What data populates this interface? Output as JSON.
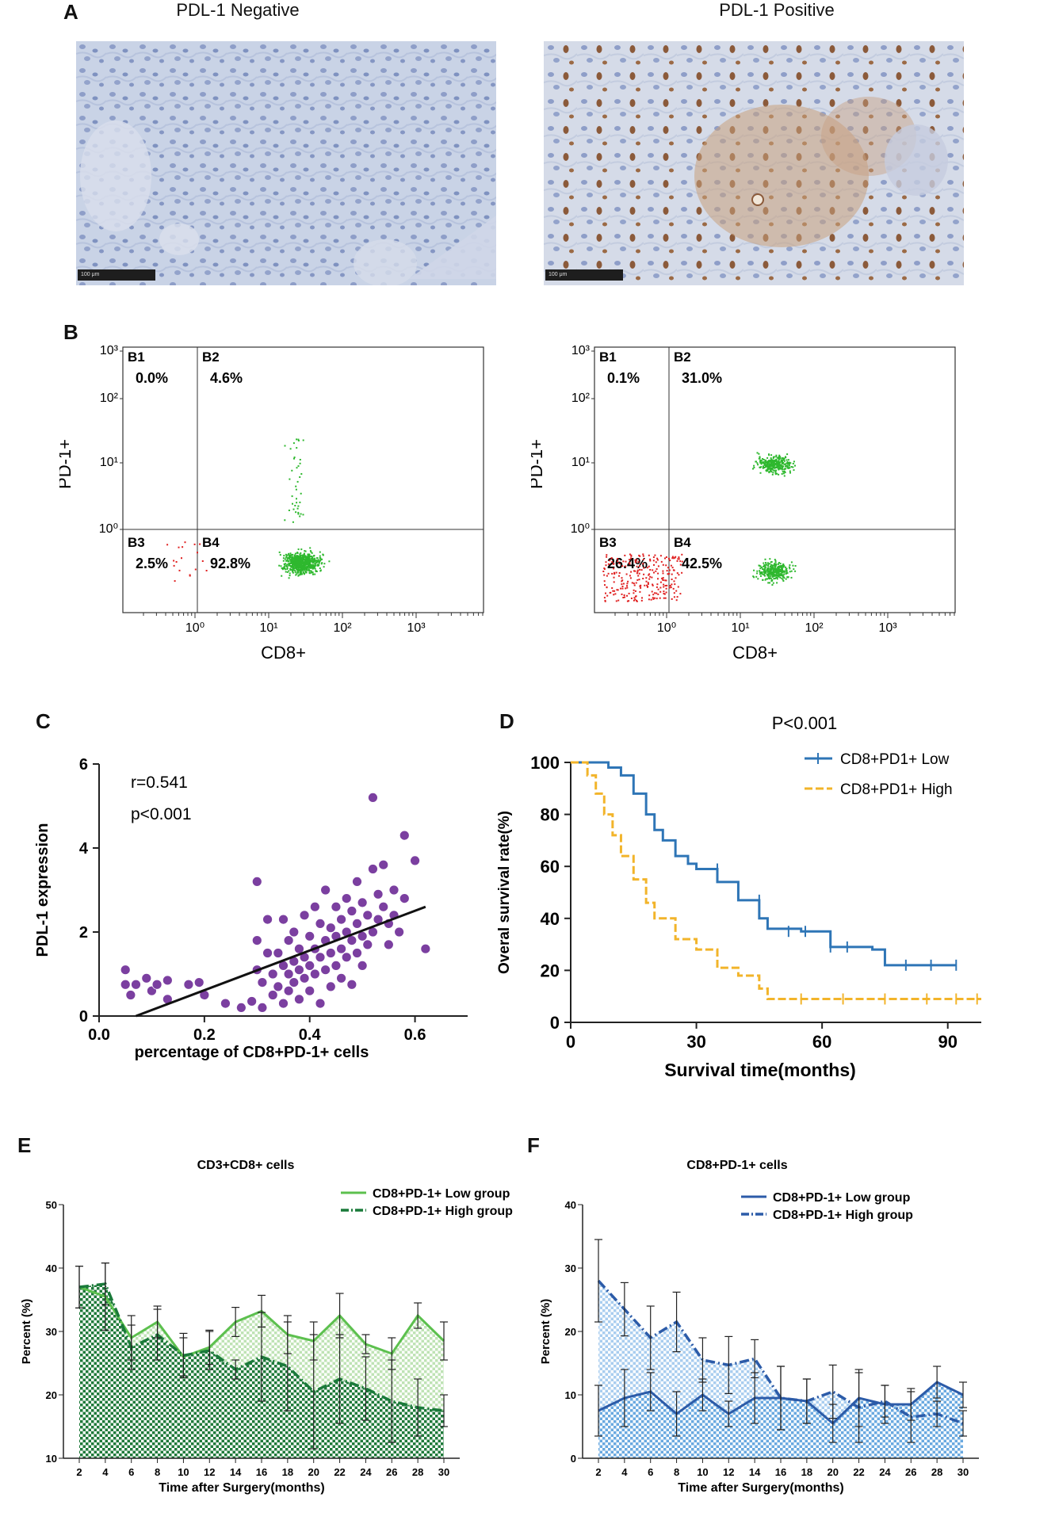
{
  "panel_a": {
    "label": "A",
    "left_title": "PDL-1 Negative",
    "right_title": "PDL-1 Positive",
    "scale_text": "100 μm"
  },
  "panel_b": {
    "label": "B",
    "ylabel": "PD-1+",
    "xlabel": "CD8+",
    "ticks": [
      "10⁰",
      "10¹",
      "10²",
      "10³"
    ],
    "left": {
      "B1": "0.0%",
      "B2": "4.6%",
      "B3": "2.5%",
      "B4": "92.8%"
    },
    "right": {
      "B1": "0.1%",
      "B2": "31.0%",
      "B3": "26.4%",
      "B4": "42.5%"
    },
    "quadrant_names": [
      "B1",
      "B2",
      "B3",
      "B4"
    ]
  },
  "panel_c": {
    "label": "C",
    "xlabel": "percentage of CD8+PD-1+ cells",
    "ylabel": "PDL-1  expression",
    "r_text": "r=0.541",
    "p_text": "p<0.001",
    "xticks": [
      "0.0",
      "0.2",
      "0.4",
      "0.6"
    ],
    "yticks": [
      "0",
      "2",
      "4",
      "6"
    ]
  },
  "panel_d": {
    "label": "D",
    "p_text": "P<0.001",
    "xlabel": "Survival time(months)",
    "ylabel": "Overal survival rate(%)",
    "legend_low": "CD8+PD1+ Low",
    "legend_high": "CD8+PD1+ High",
    "xticks": [
      "0",
      "30",
      "60",
      "90"
    ],
    "yticks": [
      "0",
      "20",
      "40",
      "60",
      "80",
      "100"
    ]
  },
  "panel_e": {
    "label": "E",
    "title": "CD3+CD8+ cells",
    "xlabel": "Time after Surgery(months)",
    "ylabel": "Percent (%)",
    "legend_low": "CD8+PD-1+ Low group",
    "legend_high": "CD8+PD-1+ High group",
    "yticks": [
      "10",
      "20",
      "30",
      "40",
      "50"
    ]
  },
  "panel_f": {
    "label": "F",
    "title": "CD8+PD-1+ cells",
    "xlabel": "Time after Surgery(months)",
    "ylabel": "Percent (%)",
    "legend_low": "CD8+PD-1+ Low group",
    "legend_high": "CD8+PD-1+ High group",
    "yticks": [
      "0",
      "10",
      "20",
      "30",
      "40"
    ]
  },
  "colors": {
    "green_light": "#5cc04e",
    "green_dark": "#1a7a3a",
    "blue": "#2c5ba8",
    "orange": "#f2b42a",
    "km_blue": "#2e75b6",
    "purple": "#7b3fa0",
    "flow_green": "#2eb82e",
    "flow_red": "#e02020"
  },
  "chart_data": [
    {
      "id": "C",
      "type": "scatter",
      "title": "",
      "xlabel": "percentage of CD8+PD-1+ cells",
      "ylabel": "PDL-1 expression",
      "xlim": [
        0,
        0.7
      ],
      "ylim": [
        0,
        6
      ],
      "annotation": [
        "r=0.541",
        "p<0.001"
      ],
      "fit_line": {
        "x": [
          0.07,
          0.62
        ],
        "y": [
          0,
          2.6
        ]
      },
      "points": [
        [
          0.05,
          1.1
        ],
        [
          0.05,
          0.75
        ],
        [
          0.06,
          0.5
        ],
        [
          0.07,
          0.75
        ],
        [
          0.09,
          0.9
        ],
        [
          0.1,
          0.6
        ],
        [
          0.11,
          0.75
        ],
        [
          0.13,
          0.4
        ],
        [
          0.13,
          0.85
        ],
        [
          0.17,
          0.75
        ],
        [
          0.19,
          0.8
        ],
        [
          0.2,
          0.5
        ],
        [
          0.24,
          0.3
        ],
        [
          0.27,
          0.2
        ],
        [
          0.29,
          0.35
        ],
        [
          0.3,
          3.2
        ],
        [
          0.3,
          1.8
        ],
        [
          0.3,
          1.1
        ],
        [
          0.31,
          0.8
        ],
        [
          0.31,
          0.2
        ],
        [
          0.32,
          2.3
        ],
        [
          0.32,
          1.5
        ],
        [
          0.33,
          1.0
        ],
        [
          0.33,
          0.5
        ],
        [
          0.34,
          1.5
        ],
        [
          0.34,
          0.7
        ],
        [
          0.35,
          2.3
        ],
        [
          0.35,
          1.2
        ],
        [
          0.35,
          0.3
        ],
        [
          0.36,
          1.8
        ],
        [
          0.36,
          1.0
        ],
        [
          0.36,
          0.6
        ],
        [
          0.37,
          2.0
        ],
        [
          0.37,
          1.3
        ],
        [
          0.37,
          0.8
        ],
        [
          0.38,
          1.6
        ],
        [
          0.38,
          1.1
        ],
        [
          0.38,
          0.4
        ],
        [
          0.39,
          2.4
        ],
        [
          0.39,
          1.4
        ],
        [
          0.39,
          0.9
        ],
        [
          0.4,
          1.9
        ],
        [
          0.4,
          1.2
        ],
        [
          0.4,
          0.6
        ],
        [
          0.41,
          2.6
        ],
        [
          0.41,
          1.6
        ],
        [
          0.41,
          1.0
        ],
        [
          0.42,
          2.2
        ],
        [
          0.42,
          1.4
        ],
        [
          0.42,
          0.3
        ],
        [
          0.43,
          3.0
        ],
        [
          0.43,
          1.8
        ],
        [
          0.43,
          1.1
        ],
        [
          0.44,
          2.1
        ],
        [
          0.44,
          1.5
        ],
        [
          0.44,
          0.7
        ],
        [
          0.45,
          2.6
        ],
        [
          0.45,
          1.9
        ],
        [
          0.45,
          1.2
        ],
        [
          0.46,
          2.3
        ],
        [
          0.46,
          1.6
        ],
        [
          0.46,
          0.9
        ],
        [
          0.47,
          2.8
        ],
        [
          0.47,
          2.0
        ],
        [
          0.47,
          1.4
        ],
        [
          0.48,
          2.5
        ],
        [
          0.48,
          1.8
        ],
        [
          0.48,
          0.75
        ],
        [
          0.49,
          3.2
        ],
        [
          0.49,
          2.2
        ],
        [
          0.49,
          1.5
        ],
        [
          0.5,
          2.7
        ],
        [
          0.5,
          1.9
        ],
        [
          0.5,
          1.2
        ],
        [
          0.51,
          2.4
        ],
        [
          0.51,
          1.7
        ],
        [
          0.52,
          3.5
        ],
        [
          0.52,
          2.0
        ],
        [
          0.52,
          5.2
        ],
        [
          0.53,
          2.9
        ],
        [
          0.53,
          2.3
        ],
        [
          0.54,
          3.6
        ],
        [
          0.54,
          2.6
        ],
        [
          0.55,
          2.2
        ],
        [
          0.55,
          1.7
        ],
        [
          0.56,
          3.0
        ],
        [
          0.56,
          2.4
        ],
        [
          0.57,
          2.0
        ],
        [
          0.58,
          4.3
        ],
        [
          0.58,
          2.8
        ],
        [
          0.6,
          3.7
        ],
        [
          0.62,
          1.6
        ]
      ]
    },
    {
      "id": "D",
      "type": "line",
      "title": "P<0.001",
      "xlabel": "Survival time(months)",
      "ylabel": "Overal survival rate(%)",
      "xlim": [
        0,
        98
      ],
      "ylim": [
        0,
        100
      ],
      "series": [
        {
          "name": "CD8+PD1+ Low",
          "x": [
            0,
            5,
            9,
            12,
            15,
            18,
            20,
            22,
            25,
            28,
            30,
            35,
            40,
            45,
            47,
            55,
            62,
            72,
            75,
            80,
            92
          ],
          "y": [
            100,
            100,
            98,
            95,
            88,
            80,
            74,
            70,
            64,
            61,
            59,
            54,
            47,
            40,
            36,
            35,
            29,
            28,
            22,
            22,
            22
          ]
        },
        {
          "name": "CD8+PD1+ High",
          "x": [
            0,
            4,
            6,
            8,
            10,
            12,
            15,
            18,
            20,
            25,
            30,
            35,
            40,
            45,
            47,
            55,
            70,
            98
          ],
          "y": [
            100,
            95,
            88,
            80,
            72,
            64,
            55,
            46,
            40,
            32,
            28,
            21,
            18,
            13,
            9,
            9,
            9,
            9
          ]
        }
      ]
    },
    {
      "id": "E",
      "type": "area",
      "title": "CD3+CD8+ cells",
      "xlabel": "Time after Surgery(months)",
      "ylabel": "Percent (%)",
      "categories": [
        2,
        4,
        6,
        8,
        10,
        12,
        14,
        16,
        18,
        20,
        22,
        24,
        26,
        28,
        30
      ],
      "ylim": [
        10,
        50
      ],
      "series": [
        {
          "name": "CD8+PD-1+ Low group",
          "values": [
            37,
            35.5,
            29,
            31.5,
            26,
            27.5,
            31.5,
            33.2,
            29.5,
            28.5,
            32.5,
            28,
            26.5,
            32.5,
            28.5
          ],
          "errors": [
            3.3,
            5.3,
            3.5,
            2.5,
            3,
            2.7,
            2.3,
            2.5,
            3,
            3,
            3.5,
            1.5,
            2.5,
            2,
            3
          ]
        },
        {
          "name": "CD8+PD-1+ High group",
          "values": [
            37,
            37.5,
            27.5,
            29.5,
            26.2,
            27,
            24,
            26,
            24.5,
            20.5,
            22.5,
            21,
            19,
            18,
            17.5
          ],
          "errors": [
            3.3,
            3.3,
            3.5,
            4,
            3.5,
            3,
            1.5,
            7,
            7,
            9,
            7,
            5,
            6.5,
            4.5,
            2.5
          ]
        }
      ]
    },
    {
      "id": "F",
      "type": "area",
      "title": "CD8+PD-1+ cells",
      "xlabel": "Time after Surgery(months)",
      "ylabel": "Percent (%)",
      "categories": [
        2,
        4,
        6,
        8,
        10,
        12,
        14,
        16,
        18,
        20,
        22,
        24,
        26,
        28,
        30
      ],
      "ylim": [
        0,
        40
      ],
      "series": [
        {
          "name": "CD8+PD-1+ Low group",
          "values": [
            7.5,
            9.5,
            10.5,
            7,
            10,
            7,
            9.5,
            9.5,
            9,
            5.5,
            9.5,
            8.5,
            8.5,
            12,
            10
          ],
          "errors": [
            4,
            4.5,
            3,
            3.5,
            2.5,
            2,
            4,
            5,
            3.5,
            3,
            4.5,
            3,
            2.5,
            2.5,
            2
          ]
        },
        {
          "name": "CD8+PD-1+ High group",
          "values": [
            28,
            23.5,
            19,
            21.5,
            15.5,
            14.7,
            15.7,
            9.5,
            9,
            10.5,
            8,
            9,
            6.5,
            7,
            5.5
          ],
          "errors": [
            6.5,
            4.2,
            5,
            4.7,
            3.5,
            4.5,
            3,
            5,
            3.5,
            4.2,
            5.5,
            2.5,
            4,
            2,
            2
          ]
        }
      ]
    }
  ]
}
